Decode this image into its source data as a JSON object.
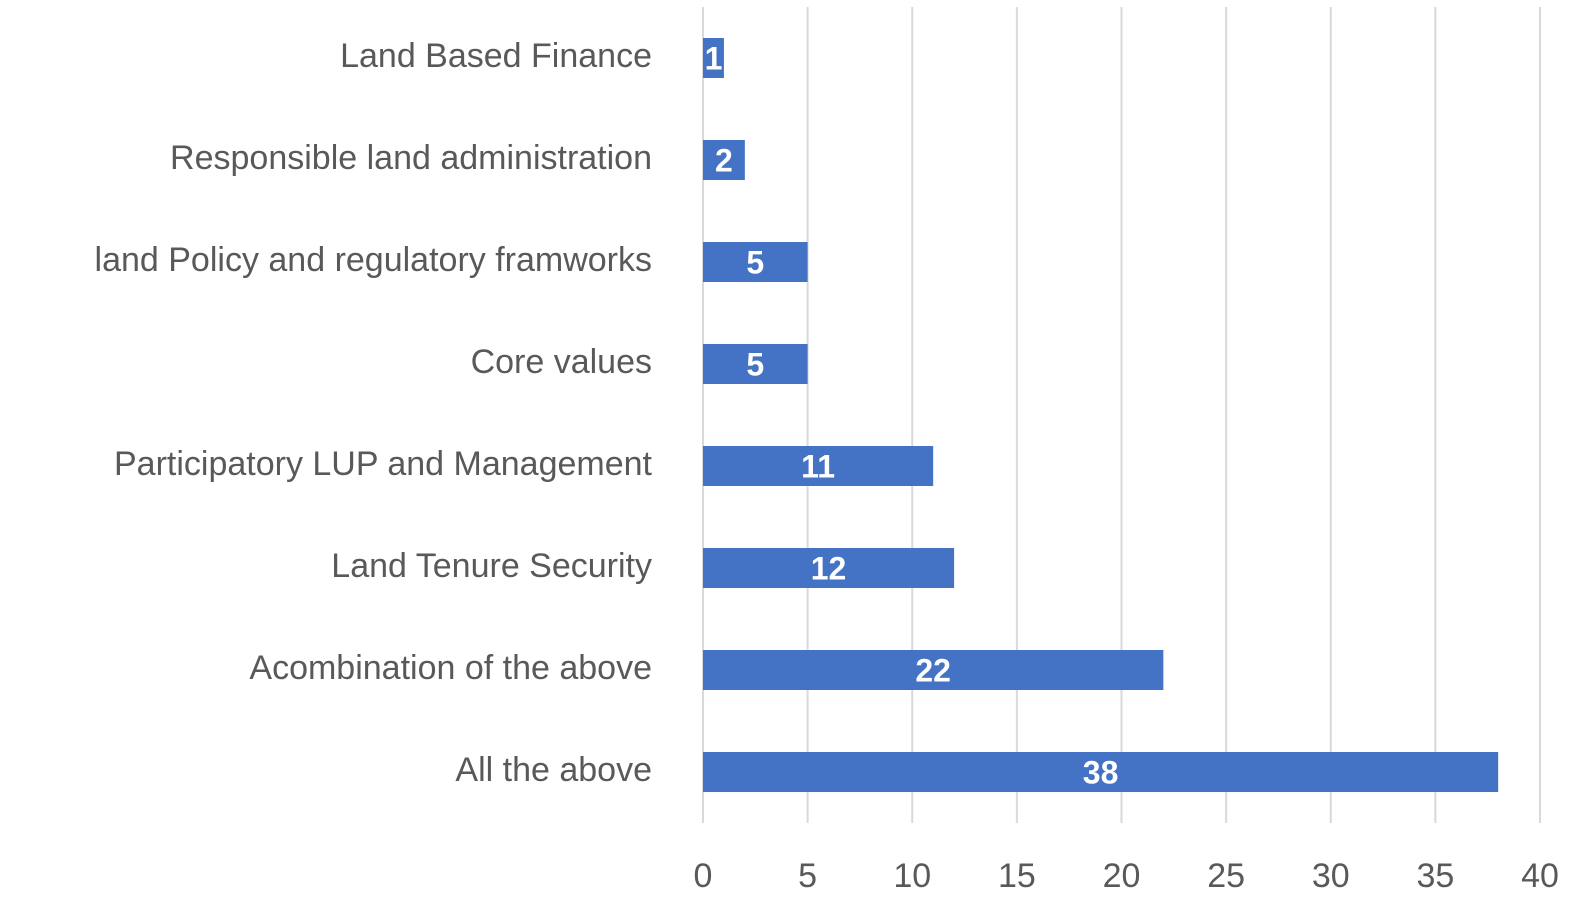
{
  "chart_data": {
    "type": "bar",
    "orientation": "horizontal",
    "categories": [
      "Land Based Finance",
      "Responsible land administration",
      "land Policy and regulatory framworks",
      "Core values",
      "Participatory LUP and Management",
      "Land Tenure Security",
      "Acombination of the above",
      "All the above"
    ],
    "values": [
      1,
      2,
      5,
      5,
      11,
      12,
      22,
      38
    ],
    "color": "#4472c4",
    "xlim": [
      0,
      40
    ],
    "xticks": [
      0,
      5,
      10,
      15,
      20,
      25,
      30,
      35,
      40
    ],
    "grid": true
  }
}
